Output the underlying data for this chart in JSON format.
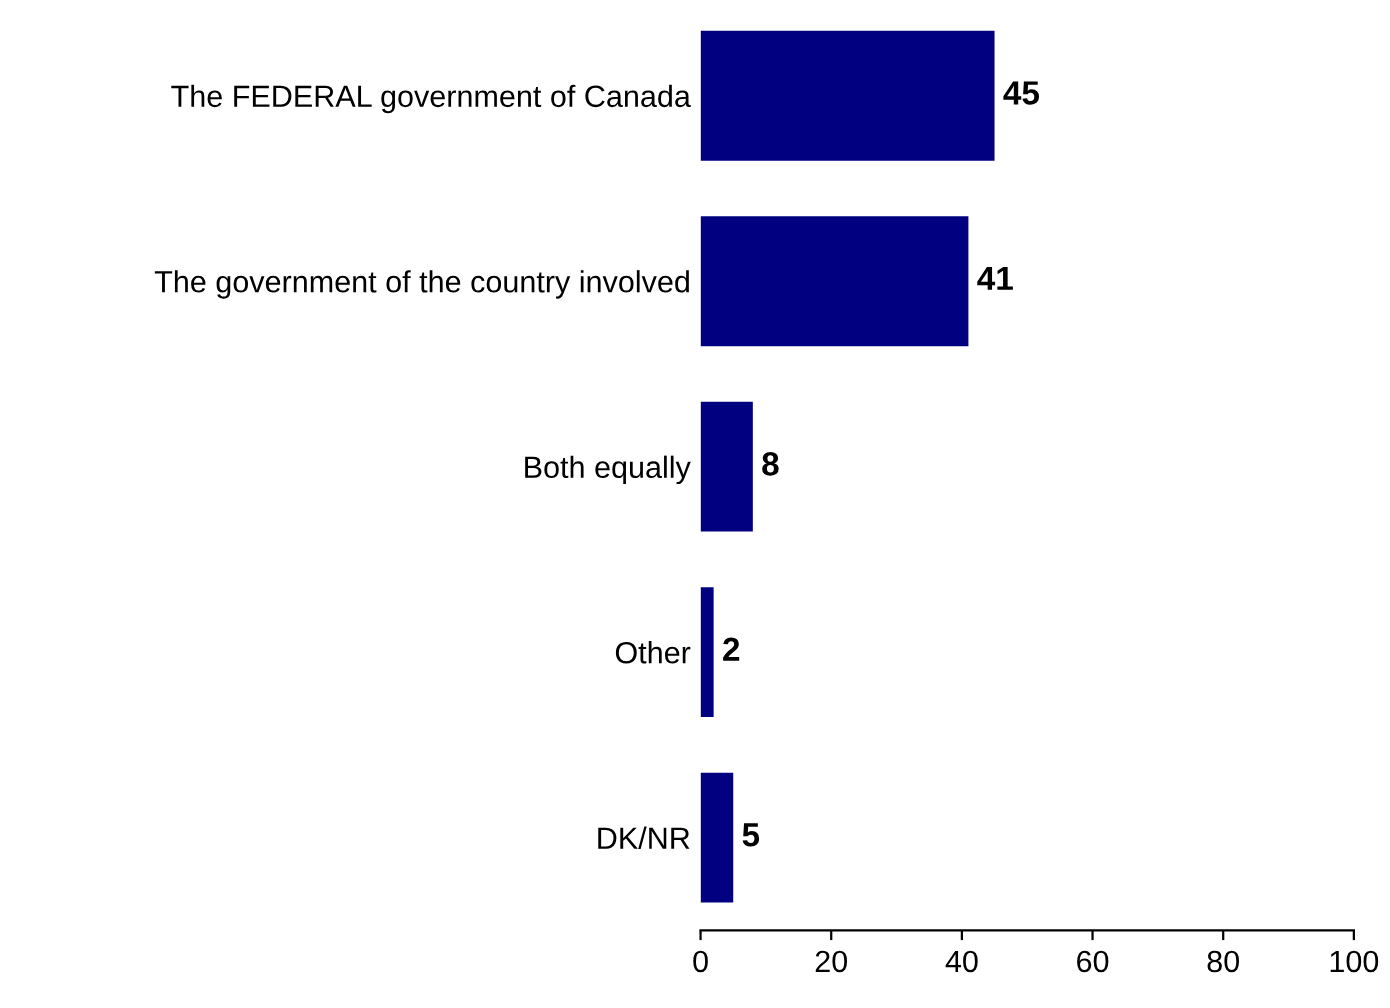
{
  "chart_data": {
    "type": "bar",
    "orientation": "horizontal",
    "categories": [
      "The FEDERAL government of Canada",
      "The government of the country involved",
      "Both equally",
      "Other",
      "DK/NR"
    ],
    "values": [
      45,
      41,
      8,
      2,
      5
    ],
    "color": "#000080",
    "xlim": [
      0,
      100
    ],
    "xticks": [
      0,
      20,
      40,
      60,
      80,
      100
    ],
    "grid": false,
    "data_labels": true
  }
}
